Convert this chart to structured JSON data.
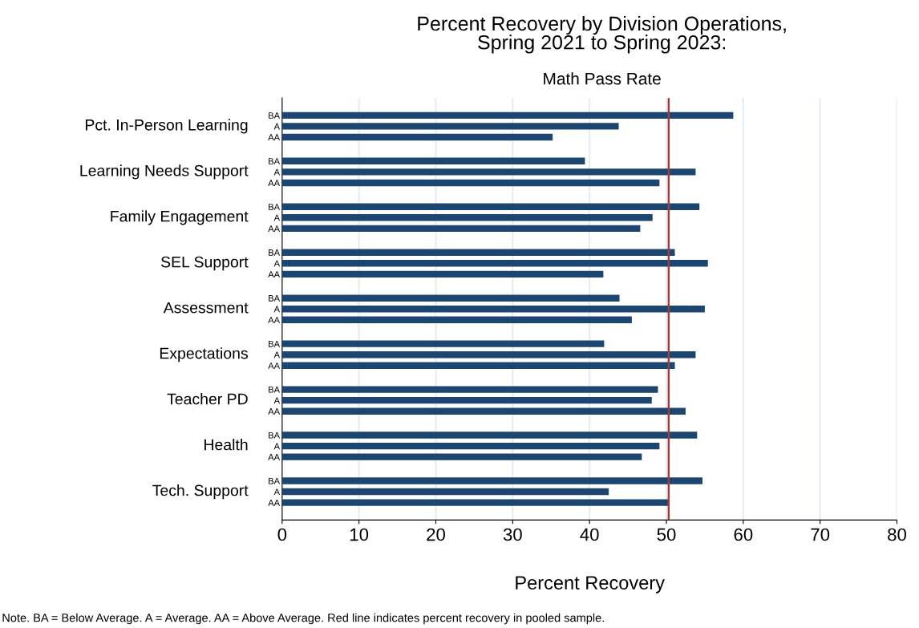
{
  "chart_data": {
    "type": "bar",
    "orientation": "horizontal",
    "title": "Percent Recovery by Division Operations,\nSpring 2021 to Spring 2023:",
    "subtitle": "Math Pass Rate",
    "xlabel": "Percent Recovery",
    "categories": [
      "BA",
      "A",
      "AA",
      "BA",
      "A",
      "AA",
      "BA",
      "A",
      "AA",
      "BA",
      "A",
      "AA",
      "BA",
      "A",
      "AA",
      "BA",
      "A",
      "AA",
      "BA",
      "A",
      "AA",
      "BA",
      "A",
      "AA",
      "BA",
      "A",
      "AA"
    ],
    "values": [
      58.7,
      43.8,
      35.2,
      39.4,
      53.8,
      49.1,
      54.3,
      48.2,
      46.6,
      51.1,
      55.4,
      41.8,
      43.9,
      55.0,
      45.5,
      41.9,
      53.8,
      51.1,
      48.9,
      48.1,
      52.5,
      54.0,
      49.1,
      46.8,
      54.7,
      42.5,
      50.4
    ],
    "color": "#1c4670",
    "xlim": [
      0,
      80
    ],
    "xticks": [
      0,
      10,
      20,
      30,
      40,
      50,
      60,
      70,
      80
    ],
    "grid": "x",
    "ref_lines": [
      {
        "axis": "x",
        "value": 50.3,
        "color": "#9e3f3f"
      }
    ],
    "annotations": [
      "Pct. In-Person Learning",
      "Learning Needs Support",
      "Family Engagement",
      "SEL Support",
      "Assessment",
      "Expectations",
      "Teacher PD",
      "Health",
      "Tech. Support",
      "Note. BA = Below Average. A = Average. AA = Above Average. Red line indicates percent recovery in pooled sample."
    ]
  }
}
